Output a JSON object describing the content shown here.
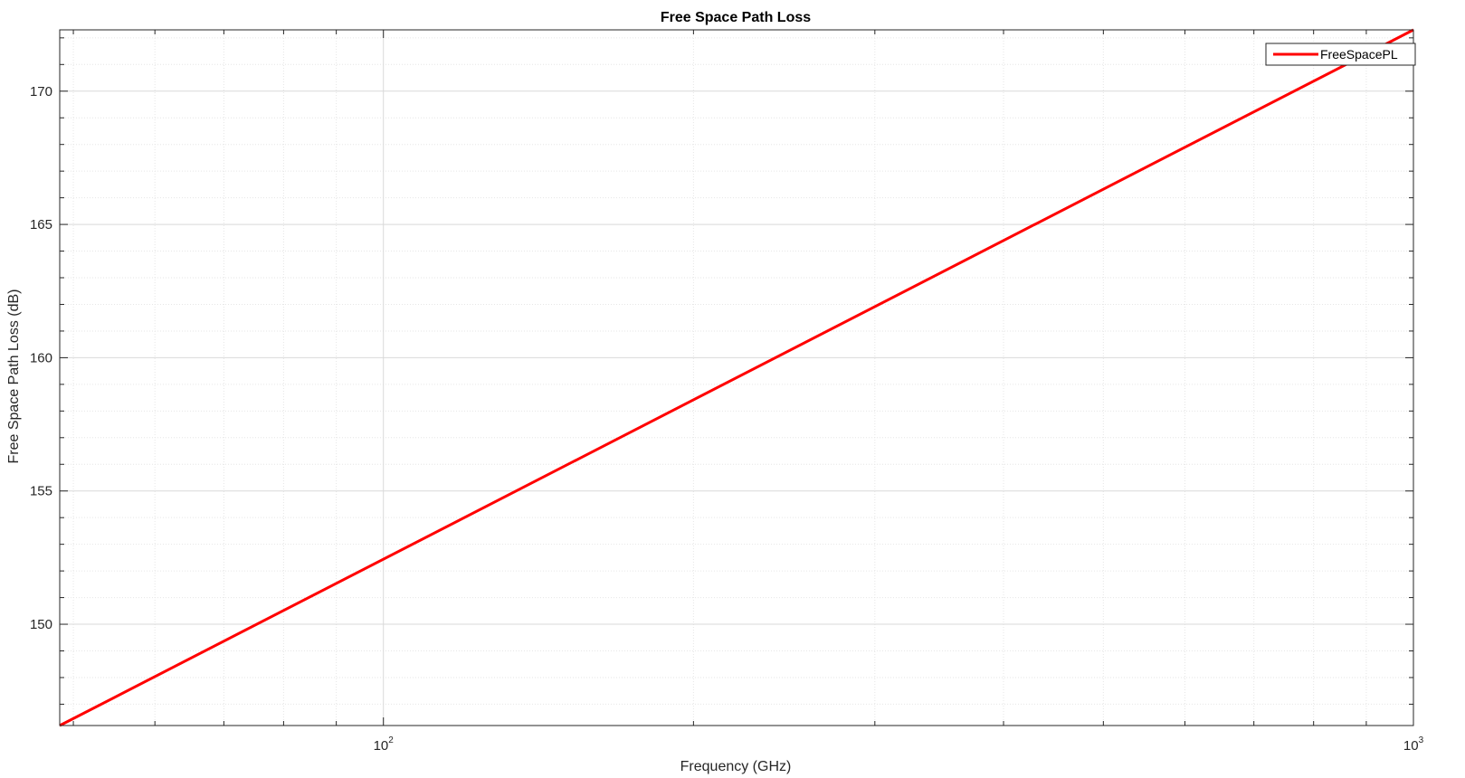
{
  "colors": {
    "series": "#ff0000",
    "axis": "#262626",
    "major_grid": "#d9d9d9",
    "minor_grid": "#e6e6e6",
    "background": "#ffffff"
  },
  "chart_data": {
    "type": "line",
    "title": "Free Space Path Loss",
    "xlabel": "Frequency (GHz)",
    "ylabel": "Free Space Path Loss (dB)",
    "xscale": "log",
    "xlim": [
      48.5,
      1000
    ],
    "ylim": [
      146.2,
      172.3
    ],
    "x_ticks": [
      100,
      1000
    ],
    "x_tick_labels": [
      {
        "base": "10",
        "exp": "2"
      },
      {
        "base": "10",
        "exp": "3"
      }
    ],
    "x_minor_ticks": [
      50,
      60,
      70,
      80,
      90,
      200,
      300,
      400,
      500,
      600,
      700,
      800,
      900
    ],
    "y_ticks": [
      150,
      155,
      160,
      165,
      170
    ],
    "y_tick_labels": [
      "150",
      "155",
      "160",
      "165",
      "170"
    ],
    "y_minor_step": 1,
    "grid": true,
    "minor_grid": true,
    "box": true,
    "legend": "top-right",
    "series": [
      {
        "name": "FreeSpacePL",
        "x": [
          48.5,
          1000
        ],
        "y": [
          146.2,
          172.3
        ]
      }
    ]
  }
}
